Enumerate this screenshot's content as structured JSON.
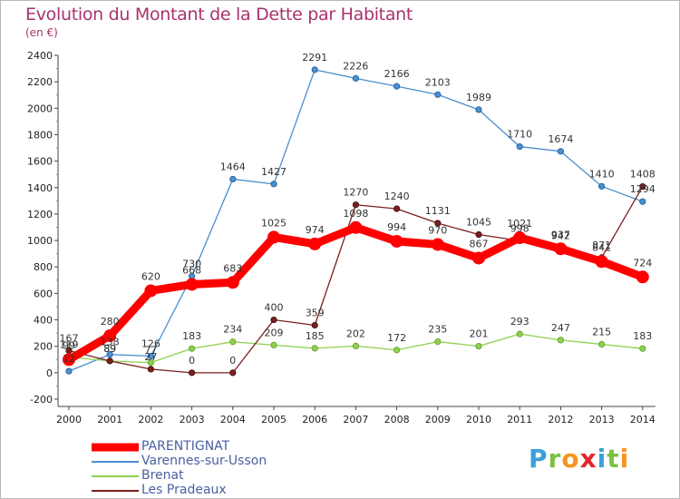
{
  "title": "Evolution du Montant de la Dette par Habitant",
  "unit": "(en €)",
  "brand": "Proxiti",
  "chart_data": {
    "type": "line",
    "title": "Evolution du Montant de la Dette par Habitant",
    "subtitle": "(en €)",
    "xlabel": "",
    "ylabel": "",
    "categories": [
      "2000",
      "2001",
      "2002",
      "2003",
      "2004",
      "2005",
      "2006",
      "2007",
      "2008",
      "2009",
      "2010",
      "2011",
      "2012",
      "2013",
      "2014"
    ],
    "ylim": [
      -200,
      2400
    ],
    "yticks": [
      -200,
      0,
      200,
      400,
      600,
      800,
      1000,
      1200,
      1400,
      1600,
      1800,
      2000,
      2200,
      2400
    ],
    "grid": false,
    "legend_position": "bottom-left",
    "series": [
      {
        "name": "PARENTIGNAT",
        "color": "#ff0000",
        "values": [
          99,
          280,
          620,
          668,
          683,
          1025,
          974,
          1098,
          994,
          970,
          867,
          1021,
          937,
          841,
          724
        ]
      },
      {
        "name": "Varennes-sur-Usson",
        "color": "#6fa3d6",
        "values": [
          12,
          138,
          126,
          730,
          1464,
          1427,
          2291,
          2226,
          2166,
          2103,
          1989,
          1710,
          1674,
          1410,
          1294
        ]
      },
      {
        "name": "Brenat",
        "color": "#99d066",
        "values": [
          119,
          89,
          77,
          183,
          234,
          209,
          185,
          202,
          172,
          235,
          201,
          293,
          247,
          215,
          183
        ]
      },
      {
        "name": "Les Pradeaux",
        "color": "#7a2b2b",
        "values": [
          167,
          89,
          27,
          0,
          0,
          400,
          359,
          1270,
          1240,
          1131,
          1045,
          998,
          942,
          871,
          1408
        ]
      }
    ]
  }
}
